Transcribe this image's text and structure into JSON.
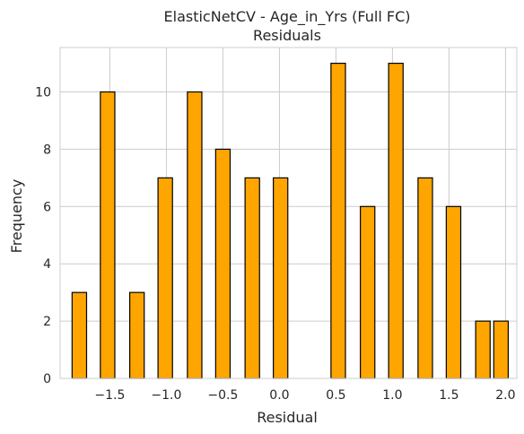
{
  "chart_data": {
    "type": "bar",
    "title": "ElasticNetCV - Age_in_Yrs (Full FC)",
    "subtitle": "Residuals",
    "xlabel": "Residual",
    "ylabel": "Frequency",
    "bin_centers": [
      -1.77,
      -1.52,
      -1.26,
      -1.01,
      -0.75,
      -0.5,
      -0.24,
      0.01,
      0.27,
      0.52,
      0.78,
      1.03,
      1.29,
      1.54,
      1.8,
      1.96
    ],
    "values": [
      3,
      10,
      3,
      7,
      10,
      8,
      7,
      7,
      0,
      11,
      6,
      11,
      7,
      6,
      2,
      2
    ],
    "bar_width": 0.128,
    "xlim": [
      -1.94,
      2.1
    ],
    "ylim": [
      0,
      11.55
    ],
    "x_ticks": [
      -1.5,
      -1.0,
      -0.5,
      0.0,
      0.5,
      1.0,
      1.5,
      2.0
    ],
    "x_tick_labels": [
      "−1.5",
      "−1.0",
      "−0.5",
      "0.0",
      "0.5",
      "1.0",
      "1.5",
      "2.0"
    ],
    "y_ticks": [
      0,
      2,
      4,
      6,
      8,
      10
    ],
    "y_tick_labels": [
      "0",
      "2",
      "4",
      "6",
      "8",
      "10"
    ],
    "grid": true,
    "bar_color": "#ffa500",
    "edge_color": "#000000"
  }
}
